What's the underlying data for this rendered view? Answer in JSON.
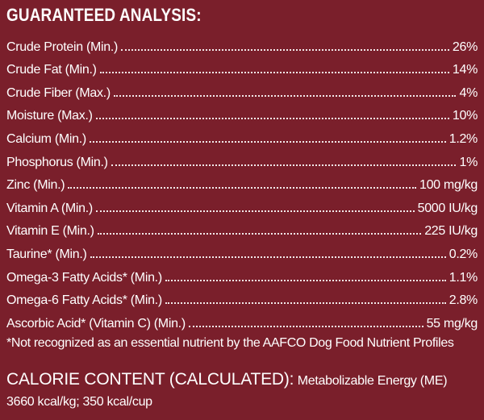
{
  "title": "GUARANTEED ANALYSIS:",
  "rows": [
    {
      "label": "Crude Protein (Min.)",
      "value": "26%"
    },
    {
      "label": "Crude Fat (Min.)",
      "value": "14%"
    },
    {
      "label": "Crude Fiber (Max.)",
      "value": "4%"
    },
    {
      "label": "Moisture (Max.)",
      "value": "10%"
    },
    {
      "label": "Calcium (Min.)",
      "value": "1.2%"
    },
    {
      "label": "Phosphorus (Min.)",
      "value": "1%"
    },
    {
      "label": "Zinc (Min.)",
      "value": "100 mg/kg"
    },
    {
      "label": "Vitamin A (Min.)",
      "value": "5000 IU/kg"
    },
    {
      "label": "Vitamin E (Min.)",
      "value": "225 IU/kg"
    },
    {
      "label": "Taurine* (Min.)",
      "value": "0.2%"
    },
    {
      "label": "Omega-3 Fatty Acids* (Min.)",
      "value": "1.1%"
    },
    {
      "label": "Omega-6 Fatty Acids* (Min.)",
      "value": "2.8%"
    },
    {
      "label": "Ascorbic Acid* (Vitamin C) (Min.)",
      "value": "55 mg/kg"
    }
  ],
  "footnote": "*Not recognized as an essential nutrient by the AAFCO Dog Food Nutrient Profiles",
  "calorie": {
    "heading": "CALORIE CONTENT (CALCULATED):",
    "text": "Metabolizable Energy (ME) 3660 kcal/kg; 350 kcal/cup"
  },
  "colors": {
    "background": "#7a1f2b",
    "text": "#ffffff"
  }
}
